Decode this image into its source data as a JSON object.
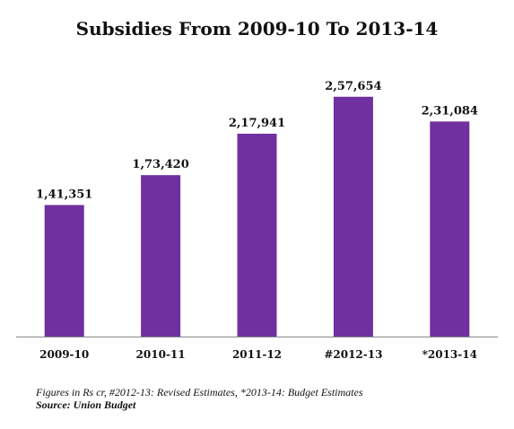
{
  "title": "Subsidies From 2009-10 To 2013-14",
  "footnote": "Figures in Rs cr, #2012-13: Revised Estimates, *2013-14: Budget Estimates",
  "source": "Source: Union Budget",
  "colors": {
    "bar": "#70309f",
    "axis": "#888888",
    "text": "#111111"
  },
  "chart_data": {
    "type": "bar",
    "title": "Subsidies From 2009-10 To 2013-14",
    "categories": [
      "2009-10",
      "2010-11",
      "2011-12",
      "#2012-13",
      "*2013-14"
    ],
    "values": [
      141351,
      173420,
      217941,
      257654,
      231084
    ],
    "data_labels": [
      "1,41,351",
      "1,73,420",
      "2,17,941",
      "2,57,654",
      "2,31,084"
    ],
    "ylim": [
      0,
      270000
    ],
    "grid": false,
    "legend": "none"
  }
}
